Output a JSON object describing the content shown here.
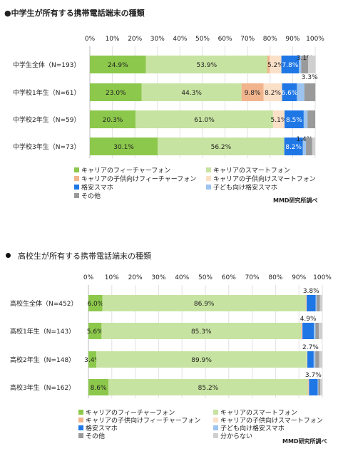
{
  "colors": {
    "carrier_feature": "#8cc84b",
    "carrier_smart": "#c7e3a1",
    "kids_feature": "#f2b48c",
    "kids_smart": "#fbe0c8",
    "mvno": "#1f77e6",
    "kids_mvno": "#9cc4ee",
    "other": "#9a9a9a",
    "unknown": "#cfcfcf"
  },
  "legend_labels": {
    "carrier_feature": "キャリアのフィーチャーフォン",
    "carrier_smart": "キャリアのスマートフォン",
    "kids_feature": "キャリアの子供向けフィーチャーフォン",
    "kids_smart": "キャリアの子供向けスマートフォン",
    "mvno": "格安スマホ",
    "kids_mvno": "子ども向け格安スマホ",
    "other": "その他",
    "unknown": "分からない"
  },
  "chart_data": [
    {
      "type": "bar",
      "orientation": "horizontal",
      "stacked": true,
      "title": "●中学生が所有する携帯電話端末の種類",
      "xlim": [
        0,
        100
      ],
      "xticks": [
        "0%",
        "10%",
        "20%",
        "30%",
        "40%",
        "50%",
        "60%",
        "70%",
        "80%",
        "90%",
        "100%"
      ],
      "categories": [
        "中学生全体（N=193）",
        "中学校1年生（N=61）",
        "中学校2年生（N=59）",
        "中学校3年生（N=73）"
      ],
      "series": [
        {
          "key": "carrier_feature",
          "name": "キャリアのフィーチャーフォン",
          "values": [
            24.9,
            23.0,
            20.3,
            30.1
          ]
        },
        {
          "key": "carrier_smart",
          "name": "キャリアのスマートフォン",
          "values": [
            53.9,
            44.3,
            61.0,
            56.2
          ]
        },
        {
          "key": "kids_feature",
          "name": "キャリアの子供向けフィーチャーフォン",
          "values": [
            1.0,
            9.8,
            0,
            0
          ]
        },
        {
          "key": "kids_smart",
          "name": "キャリアの子供向けスマートフォン",
          "values": [
            5.2,
            8.2,
            5.1,
            0
          ]
        },
        {
          "key": "mvno",
          "name": "格安スマホ",
          "values": [
            7.8,
            6.6,
            8.5,
            8.2
          ]
        },
        {
          "key": "kids_mvno",
          "name": "子ども向け格安スマホ",
          "values": [
            1.0,
            3.3,
            1.7,
            1.4
          ]
        },
        {
          "key": "other",
          "name": "その他",
          "values": [
            3.1,
            4.9,
            3.4,
            2.8
          ]
        },
        {
          "key": "unknown",
          "name": "分からない",
          "values": [
            3.3,
            0,
            0,
            1.3
          ]
        }
      ],
      "data_labels": [
        [
          "24.9%",
          "53.9%",
          "",
          "5.2%",
          "7.8%",
          "",
          "3.1%",
          "3.3%"
        ],
        [
          "23.0%",
          "44.3%",
          "9.8%",
          "8.2%",
          "6.6%",
          "",
          "",
          ""
        ],
        [
          "20.3%",
          "61.0%",
          "",
          "5.1%",
          "8.5%",
          "",
          "",
          ""
        ],
        [
          "30.1%",
          "56.2%",
          "",
          "",
          "8.2%",
          "1.4%",
          "",
          ""
        ]
      ],
      "legend_order": [
        "carrier_feature",
        "carrier_smart",
        "kids_feature",
        "kids_smart",
        "mvno",
        "kids_mvno",
        "other"
      ],
      "credit": "MMD研究所調べ"
    },
    {
      "type": "bar",
      "orientation": "horizontal",
      "stacked": true,
      "title": "高校生が所有する携帯電話端末の種類",
      "xlim": [
        0,
        100
      ],
      "xticks": [
        "0%",
        "10%",
        "20%",
        "30%",
        "40%",
        "50%",
        "60%",
        "70%",
        "80%",
        "90%",
        "100%"
      ],
      "categories": [
        "高校生全体（N=452）",
        "高校1年生（N=143）",
        "高校2年生（N=148）",
        "高校3年生（N=162）"
      ],
      "series": [
        {
          "key": "carrier_feature",
          "name": "キャリアのフィーチャーフォン",
          "values": [
            6.0,
            5.6,
            3.4,
            8.6
          ]
        },
        {
          "key": "carrier_smart",
          "name": "キャリアのスマートフォン",
          "values": [
            86.9,
            85.3,
            89.9,
            85.2
          ]
        },
        {
          "key": "kids_feature",
          "name": "キャリアの子供向けフィーチャーフォン",
          "values": [
            0.2,
            0.3,
            0,
            0.3
          ]
        },
        {
          "key": "kids_smart",
          "name": "キャリアの子供向けスマートフォン",
          "values": [
            0.2,
            0.3,
            0.3,
            0.2
          ]
        },
        {
          "key": "mvno",
          "name": "格安スマホ",
          "values": [
            3.8,
            4.9,
            2.7,
            3.7
          ]
        },
        {
          "key": "kids_mvno",
          "name": "子ども向け格安スマホ",
          "values": [
            0.5,
            0.7,
            0.7,
            0.3
          ]
        },
        {
          "key": "other",
          "name": "その他",
          "values": [
            1.4,
            1.4,
            1.7,
            0.8
          ]
        },
        {
          "key": "unknown",
          "name": "分からない",
          "values": [
            1.0,
            1.5,
            1.3,
            0.9
          ]
        }
      ],
      "data_labels": [
        [
          "6.0%",
          "86.9%",
          "",
          "",
          "3.8%",
          "",
          "",
          ""
        ],
        [
          "5.6%",
          "85.3%",
          "",
          "",
          "4.9%",
          "",
          "",
          ""
        ],
        [
          "3.4%",
          "89.9%",
          "",
          "",
          "2.7%",
          "",
          "",
          ""
        ],
        [
          "8.6%",
          "85.2%",
          "",
          "",
          "3.7%",
          "",
          "",
          ""
        ]
      ],
      "legend_order": [
        "carrier_feature",
        "carrier_smart",
        "kids_feature",
        "kids_smart",
        "mvno",
        "kids_mvno",
        "other",
        "unknown"
      ],
      "credit": "MMD研究所調べ"
    }
  ]
}
